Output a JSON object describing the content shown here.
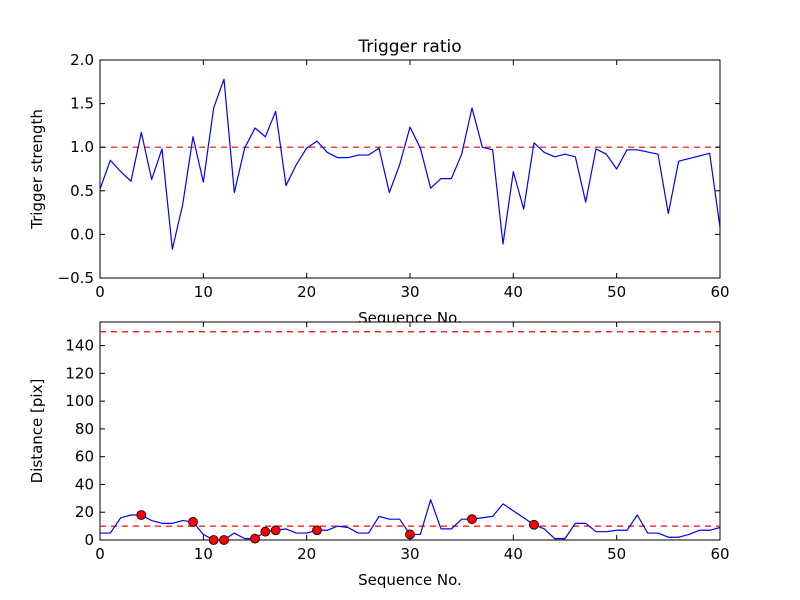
{
  "chart_data": [
    {
      "type": "line",
      "title": "Trigger ratio",
      "xlabel": "Sequence No.",
      "ylabel": "Trigger strength",
      "xlim": [
        0,
        60
      ],
      "ylim": [
        -0.5,
        2.0
      ],
      "xticks": [
        0,
        10,
        20,
        30,
        40,
        50,
        60
      ],
      "yticks": [
        -0.5,
        0.0,
        0.5,
        1.0,
        1.5,
        2.0
      ],
      "ytick_labels": [
        "−0.5",
        "0.0",
        "0.5",
        "1.0",
        "1.5",
        "2.0"
      ],
      "series": [
        {
          "name": "trigger strength",
          "color": "#0000ff",
          "x": [
            0,
            1,
            2,
            3,
            4,
            5,
            6,
            7,
            8,
            9,
            10,
            11,
            12,
            13,
            14,
            15,
            16,
            17,
            18,
            19,
            20,
            21,
            22,
            23,
            24,
            25,
            26,
            27,
            28,
            29,
            30,
            31,
            32,
            33,
            34,
            35,
            36,
            37,
            38,
            39,
            40,
            41,
            42,
            43,
            44,
            45,
            46,
            47,
            48,
            49,
            50,
            51,
            52,
            54,
            55,
            56,
            59,
            60
          ],
          "y": [
            0.52,
            0.85,
            0.72,
            0.61,
            1.17,
            0.63,
            0.98,
            -0.17,
            0.34,
            1.12,
            0.6,
            1.45,
            1.78,
            0.48,
            0.99,
            1.22,
            1.12,
            1.41,
            0.56,
            0.8,
            0.99,
            1.07,
            0.94,
            0.88,
            0.88,
            0.91,
            0.91,
            0.99,
            0.48,
            0.8,
            1.23,
            0.99,
            0.53,
            0.64,
            0.64,
            0.92,
            1.45,
            1.0,
            0.97,
            -0.11,
            0.72,
            0.29,
            1.05,
            0.94,
            0.89,
            0.92,
            0.89,
            0.37,
            0.98,
            0.92,
            0.75,
            0.97,
            0.97,
            0.92,
            0.24,
            0.84,
            0.93,
            0.08
          ]
        }
      ],
      "reference_lines": [
        {
          "y": 1.0,
          "color": "#ff0000",
          "style": "dashed"
        }
      ]
    },
    {
      "type": "line",
      "title": "",
      "xlabel": "Sequence No.",
      "ylabel": "Distance [pix]",
      "xlim": [
        0,
        60
      ],
      "ylim": [
        0,
        157
      ],
      "xticks": [
        0,
        10,
        20,
        30,
        40,
        50,
        60
      ],
      "yticks": [
        0,
        20,
        40,
        60,
        80,
        100,
        120,
        140
      ],
      "ytick_labels": [
        "0",
        "20",
        "40",
        "60",
        "80",
        "100",
        "120",
        "140"
      ],
      "series": [
        {
          "name": "distance",
          "color": "#0000ff",
          "x": [
            0,
            1,
            2,
            3,
            4,
            5,
            6,
            7,
            8,
            9,
            10,
            11,
            12,
            13,
            14,
            15,
            16,
            17,
            18,
            19,
            20,
            21,
            22,
            23,
            24,
            25,
            26,
            27,
            28,
            29,
            30,
            31,
            32,
            33,
            34,
            35,
            36,
            37,
            38,
            39,
            40,
            41,
            42,
            43,
            44,
            45,
            46,
            47,
            48,
            49,
            50,
            51,
            52,
            53,
            54,
            55,
            56,
            57,
            58,
            59,
            60
          ],
          "y": [
            5,
            5,
            16,
            18,
            18,
            14,
            12,
            12,
            14,
            13,
            4,
            0,
            0,
            5,
            1,
            1,
            6,
            7,
            8,
            5,
            5,
            7,
            7,
            10,
            9,
            5,
            5,
            17,
            15,
            15,
            4,
            4,
            29,
            8,
            8,
            15,
            15,
            16,
            17,
            26,
            21,
            16,
            11,
            8,
            1,
            1,
            12,
            12,
            6,
            6,
            7,
            7,
            18,
            5,
            5,
            2,
            2,
            4,
            7,
            7,
            9
          ]
        },
        {
          "name": "flagged points",
          "color": "#ff0000",
          "marker": "circle",
          "x": [
            4,
            9,
            11,
            12,
            15,
            16,
            17,
            21,
            30,
            36,
            42
          ],
          "y": [
            18,
            13,
            0,
            0,
            1,
            6,
            7,
            7,
            4,
            15,
            11
          ]
        }
      ],
      "reference_lines": [
        {
          "y": 150,
          "color": "#ff0000",
          "style": "dashed"
        },
        {
          "y": 10,
          "color": "#ff0000",
          "style": "dashed"
        }
      ]
    }
  ]
}
